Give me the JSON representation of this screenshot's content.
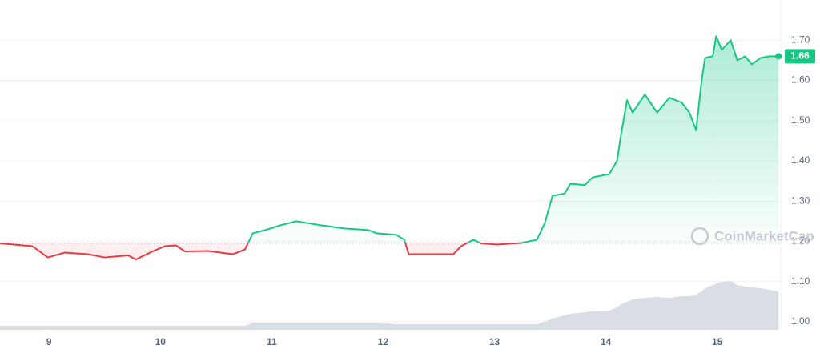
{
  "chart_data": {
    "type": "line",
    "x": [
      8.56,
      8.85,
      8.99,
      9.14,
      9.35,
      9.5,
      9.71,
      9.78,
      9.93,
      10.04,
      10.14,
      10.22,
      10.43,
      10.65,
      10.76,
      10.83,
      10.94,
      11.08,
      11.22,
      11.44,
      11.65,
      11.87,
      11.94,
      12.12,
      12.19,
      12.23,
      12.45,
      12.63,
      12.7,
      12.81,
      12.88,
      13.02,
      13.24,
      13.38,
      13.45,
      13.52,
      13.63,
      13.68,
      13.81,
      13.88,
      14.03,
      14.1,
      14.14,
      14.19,
      14.24,
      14.35,
      14.46,
      14.57,
      14.68,
      14.75,
      14.81,
      14.86,
      14.89,
      14.96,
      14.99,
      15.04,
      15.12,
      15.18,
      15.25,
      15.31,
      15.39,
      15.47,
      15.55
    ],
    "values": [
      1.195,
      1.188,
      1.16,
      1.172,
      1.168,
      1.16,
      1.165,
      1.155,
      1.175,
      1.188,
      1.19,
      1.175,
      1.176,
      1.168,
      1.18,
      1.22,
      1.228,
      1.24,
      1.25,
      1.24,
      1.232,
      1.228,
      1.22,
      1.216,
      1.204,
      1.168,
      1.168,
      1.168,
      1.188,
      1.204,
      1.195,
      1.192,
      1.196,
      1.204,
      1.244,
      1.313,
      1.319,
      1.343,
      1.34,
      1.359,
      1.367,
      1.4,
      1.472,
      1.551,
      1.52,
      1.565,
      1.52,
      1.557,
      1.545,
      1.52,
      1.476,
      1.6,
      1.656,
      1.66,
      1.71,
      1.676,
      1.7,
      1.65,
      1.66,
      1.64,
      1.656,
      1.66,
      1.66
    ],
    "volume": [
      5,
      5,
      5,
      5,
      5,
      5,
      5,
      5,
      5,
      5,
      5,
      5,
      5,
      5,
      5,
      9,
      9,
      9,
      9,
      9,
      9,
      9,
      9,
      7,
      7,
      7,
      7,
      7,
      7,
      7,
      7,
      7,
      7,
      7,
      10,
      14,
      18,
      20,
      22,
      23,
      24,
      28,
      32,
      35,
      38,
      40,
      41,
      40,
      42,
      42,
      44,
      48,
      52,
      56,
      58,
      60,
      61,
      56,
      54,
      53,
      52,
      50,
      48
    ],
    "baseline": 1.195,
    "last_price": 1.66,
    "colors": {
      "up": "#16c784",
      "down": "#ea3943",
      "volume": "#d0d5dd"
    },
    "xlim": [
      8.56,
      15.57
    ],
    "xticks": [
      9,
      10,
      11,
      12,
      13,
      14,
      15
    ],
    "ylim": [
      0.98,
      1.8
    ],
    "yticks": [
      {
        "value": 1.0,
        "label": "1.00"
      },
      {
        "value": 1.1,
        "label": "1.10"
      },
      {
        "value": 1.2,
        "label": "1.20"
      },
      {
        "value": 1.3,
        "label": "1.30"
      },
      {
        "value": 1.4,
        "label": "1.40"
      },
      {
        "value": 1.5,
        "label": "1.50"
      },
      {
        "value": 1.6,
        "label": "1.60"
      },
      {
        "value": 1.7,
        "label": "1.70"
      }
    ],
    "grid": true,
    "watermark": "CoinMarketCap"
  }
}
